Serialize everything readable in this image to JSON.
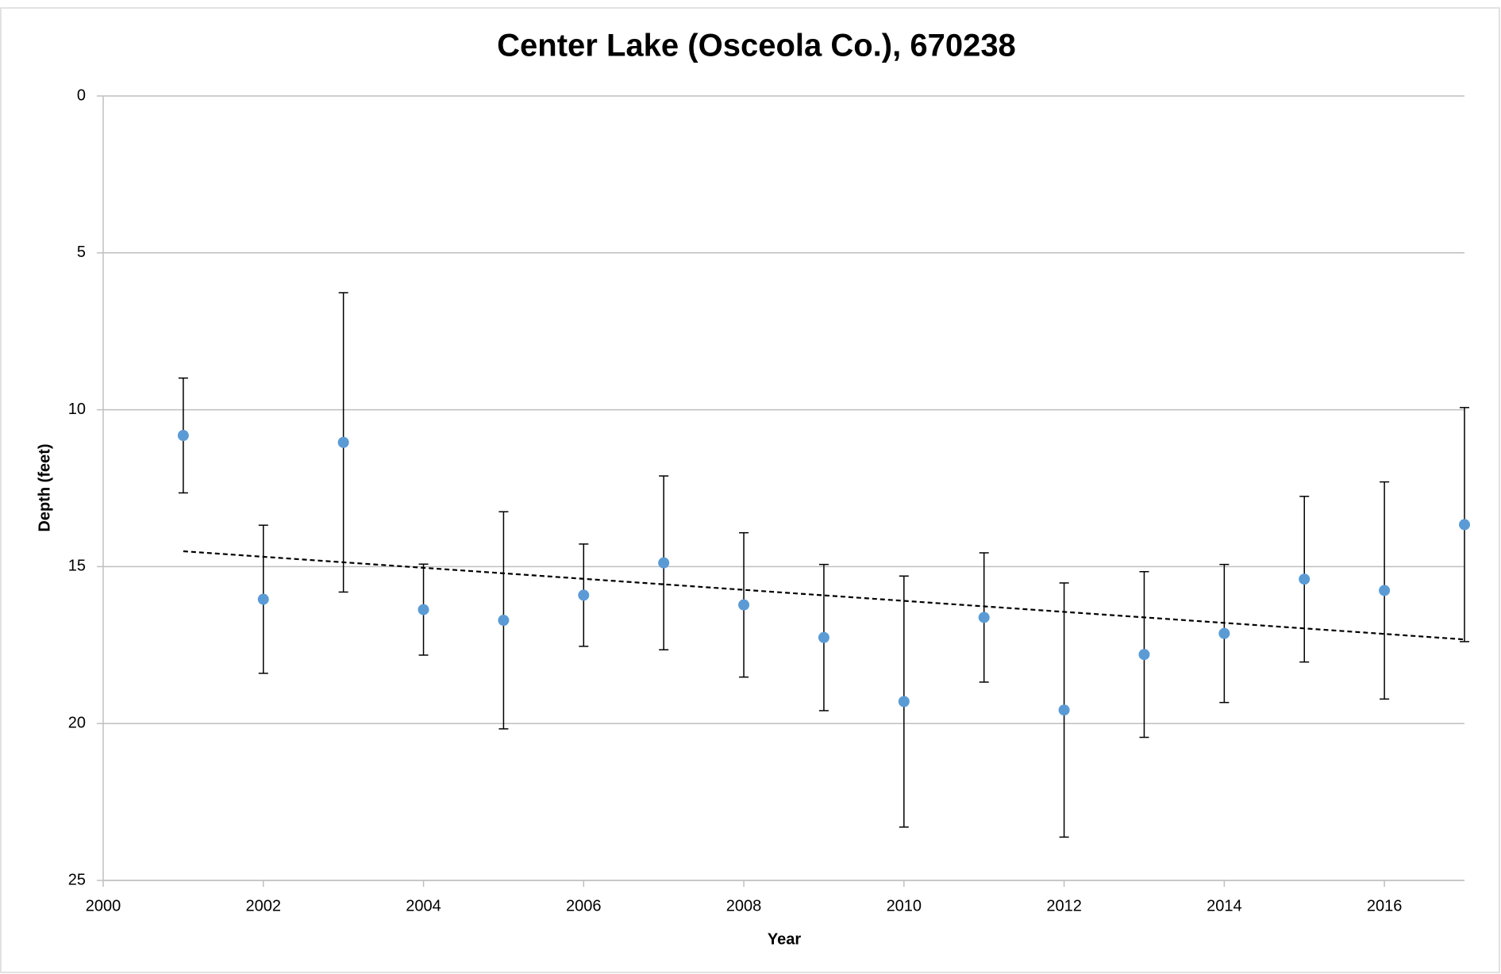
{
  "chart_data": {
    "type": "scatter",
    "title": "Center Lake (Osceola Co.), 670238",
    "xlabel": "Year",
    "ylabel": "Depth (feet)",
    "x": [
      2001,
      2002,
      2003,
      2004,
      2005,
      2006,
      2007,
      2008,
      2009,
      2010,
      2011,
      2012,
      2013,
      2014,
      2015,
      2016,
      2017
    ],
    "values": [
      10.82,
      16.04,
      11.04,
      16.37,
      16.71,
      15.91,
      14.88,
      16.22,
      17.26,
      19.3,
      16.62,
      19.57,
      17.8,
      17.13,
      15.4,
      15.76,
      13.66
    ],
    "errors": [
      1.83,
      2.36,
      4.77,
      1.45,
      3.46,
      1.63,
      2.77,
      2.3,
      2.33,
      4.0,
      2.06,
      4.05,
      2.64,
      2.2,
      2.64,
      3.46,
      3.73
    ],
    "color": "#5b9bd5",
    "error_color": "#000000",
    "trendline": {
      "x": [
        2001,
        2017
      ],
      "values": [
        14.51,
        17.32
      ],
      "color": "#000000",
      "dashed": true
    },
    "xlim": [
      2000,
      2017
    ],
    "xticks": [
      2000,
      2002,
      2004,
      2006,
      2008,
      2010,
      2012,
      2014,
      2016
    ],
    "ylim": [
      0,
      25
    ],
    "yticks": [
      0,
      5,
      10,
      15,
      20,
      25
    ],
    "y_inverted": true,
    "grid": true
  }
}
